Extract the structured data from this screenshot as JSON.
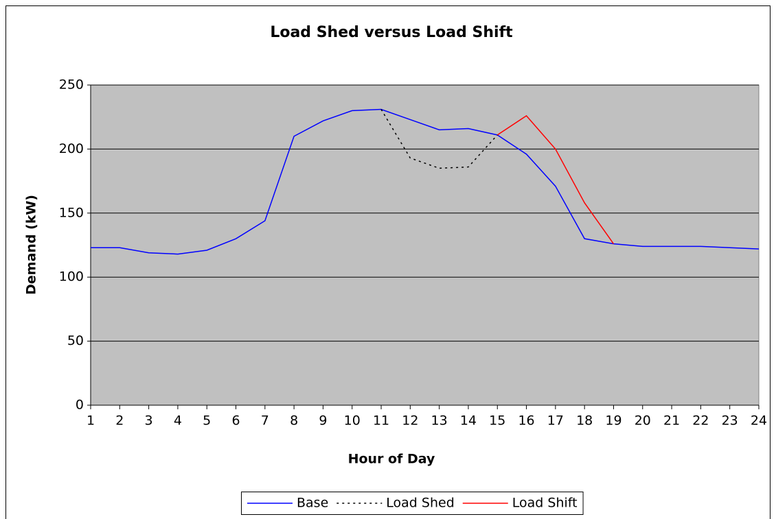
{
  "chart_data": {
    "type": "line",
    "title": "Load Shed versus Load Shift",
    "x_label": "Hour of Day",
    "y_label": "Demand (kW)",
    "x": [
      1,
      2,
      3,
      4,
      5,
      6,
      7,
      8,
      9,
      10,
      11,
      12,
      13,
      14,
      15,
      16,
      17,
      18,
      19,
      20,
      21,
      22,
      23,
      24
    ],
    "xlim": [
      1,
      24
    ],
    "xticks": [
      1,
      2,
      3,
      4,
      5,
      6,
      7,
      8,
      9,
      10,
      11,
      12,
      13,
      14,
      15,
      16,
      17,
      18,
      19,
      20,
      21,
      22,
      23,
      24
    ],
    "ylim": [
      0,
      250
    ],
    "yticks": [
      0,
      50,
      100,
      150,
      200,
      250
    ],
    "grid": true,
    "legend": "bottom",
    "series": [
      {
        "name": "Base",
        "color": "#0000ff",
        "style": "solid",
        "values": [
          123,
          123,
          119,
          118,
          121,
          130,
          144,
          210,
          222,
          230,
          231,
          223,
          215,
          216,
          211,
          196,
          171,
          130,
          126,
          124,
          124,
          124,
          123,
          122
        ]
      },
      {
        "name": "Load Shed",
        "color": "#000000",
        "style": "dotted",
        "values": [
          null,
          null,
          null,
          null,
          null,
          null,
          null,
          null,
          null,
          null,
          231,
          193,
          185,
          186,
          211,
          null,
          null,
          null,
          null,
          null,
          null,
          null,
          null,
          null
        ]
      },
      {
        "name": "Load Shift",
        "color": "#ff0000",
        "style": "solid",
        "values": [
          null,
          null,
          null,
          null,
          null,
          null,
          null,
          null,
          null,
          null,
          null,
          null,
          null,
          null,
          211,
          226,
          200,
          158,
          126,
          null,
          null,
          null,
          null,
          null
        ]
      }
    ]
  }
}
